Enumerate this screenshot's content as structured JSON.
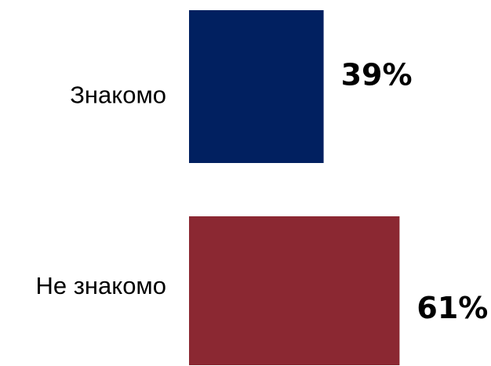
{
  "chart_data": {
    "type": "bar",
    "categories": [
      "Знакомо",
      "Не знакомо"
    ],
    "values": [
      39,
      61
    ],
    "value_labels": [
      "39%",
      "61%"
    ],
    "colors": [
      "#012060",
      "#8b2832"
    ],
    "title": "",
    "xlabel": "",
    "ylabel": "",
    "grid": false,
    "legend": "none"
  }
}
